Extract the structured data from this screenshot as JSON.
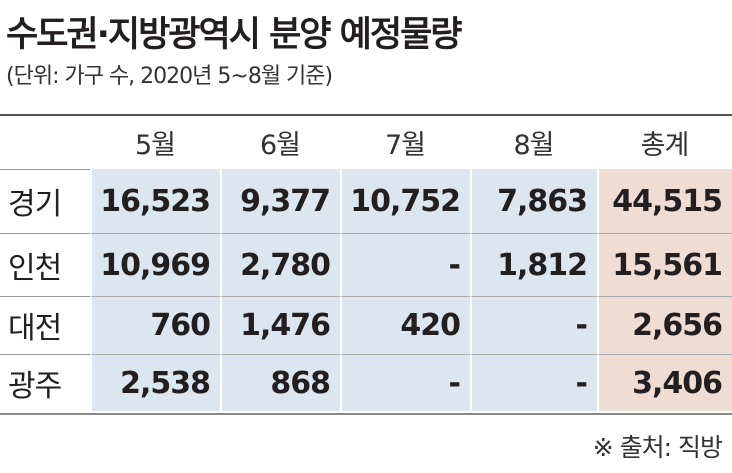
{
  "header": {
    "title": "수도권·지방광역시 분양 예정물량",
    "subtitle": "(단위: 가구 수, 2020년 5~8월 기준)"
  },
  "table": {
    "columns": [
      "",
      "5월",
      "6월",
      "7월",
      "8월",
      "총계"
    ],
    "rows": [
      [
        "경기",
        "16,523",
        "9,377",
        "10,752",
        "7,863",
        "44,515"
      ],
      [
        "인천",
        "10,969",
        "2,780",
        "-",
        "1,812",
        "15,561"
      ],
      [
        "대전",
        "760",
        "1,476",
        "420",
        "-",
        "2,656"
      ],
      [
        "광주",
        "2,538",
        "868",
        "-",
        "-",
        "3,406"
      ]
    ]
  },
  "footer": {
    "source": "※ 출처: 직방"
  }
}
